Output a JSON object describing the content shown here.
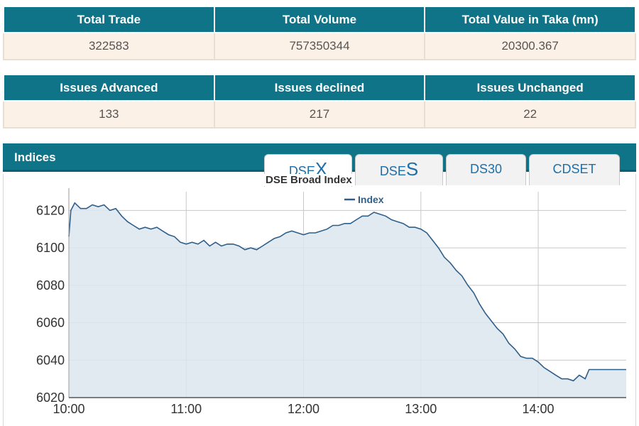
{
  "trade_table": {
    "headers": [
      "Total Trade",
      "Total Volume",
      "Total Value in Taka (mn)"
    ],
    "values": [
      "322583",
      "757350344",
      "20300.367"
    ]
  },
  "issues_table": {
    "headers": [
      "Issues Advanced",
      "Issues declined",
      "Issues Unchanged"
    ],
    "values": [
      "133",
      "217",
      "22"
    ]
  },
  "indices": {
    "title": "Indices",
    "tabs": [
      {
        "prefix": "DSE",
        "suffix": "X",
        "active": true
      },
      {
        "prefix": "DSE",
        "suffix": "S",
        "active": false
      },
      {
        "label": "DS30",
        "active": false
      },
      {
        "label": "CDSET",
        "active": false
      }
    ]
  },
  "colors": {
    "header_bg": "#0f7488",
    "cell_bg": "#fcf1e6",
    "line": "#2e5f8a",
    "fill": "#dde6ef",
    "tab_text": "#1e6fa8"
  },
  "chart_data": {
    "type": "area",
    "title": "DSE Broad Index",
    "legend": [
      "Index"
    ],
    "legend_position": "top-center",
    "x_tick_labels": [
      "10:00",
      "11:00",
      "12:00",
      "13:00",
      "14:00"
    ],
    "xlim": [
      "10:00",
      "14:45"
    ],
    "ylim": [
      6020,
      6130
    ],
    "y_ticks": [
      6020,
      6040,
      6060,
      6080,
      6100,
      6120
    ],
    "grid": true,
    "series": [
      {
        "name": "Index",
        "points": [
          [
            "10:00",
            6106
          ],
          [
            "10:01",
            6120
          ],
          [
            "10:03",
            6124
          ],
          [
            "10:06",
            6121
          ],
          [
            "10:09",
            6121
          ],
          [
            "10:12",
            6123
          ],
          [
            "10:15",
            6122
          ],
          [
            "10:18",
            6123
          ],
          [
            "10:21",
            6120
          ],
          [
            "10:24",
            6121
          ],
          [
            "10:27",
            6117
          ],
          [
            "10:30",
            6114
          ],
          [
            "10:33",
            6112
          ],
          [
            "10:36",
            6110
          ],
          [
            "10:39",
            6111
          ],
          [
            "10:42",
            6110
          ],
          [
            "10:45",
            6111
          ],
          [
            "10:48",
            6109
          ],
          [
            "10:51",
            6107
          ],
          [
            "10:54",
            6106
          ],
          [
            "10:57",
            6103
          ],
          [
            "11:00",
            6102
          ],
          [
            "11:03",
            6103
          ],
          [
            "11:06",
            6102
          ],
          [
            "11:09",
            6104
          ],
          [
            "11:12",
            6101
          ],
          [
            "11:15",
            6103
          ],
          [
            "11:18",
            6101
          ],
          [
            "11:21",
            6102
          ],
          [
            "11:24",
            6102
          ],
          [
            "11:27",
            6101
          ],
          [
            "11:30",
            6099
          ],
          [
            "11:33",
            6100
          ],
          [
            "11:36",
            6099
          ],
          [
            "11:39",
            6101
          ],
          [
            "11:42",
            6103
          ],
          [
            "11:45",
            6105
          ],
          [
            "11:48",
            6106
          ],
          [
            "11:51",
            6108
          ],
          [
            "11:54",
            6109
          ],
          [
            "11:57",
            6108
          ],
          [
            "12:00",
            6107
          ],
          [
            "12:03",
            6108
          ],
          [
            "12:06",
            6108
          ],
          [
            "12:09",
            6109
          ],
          [
            "12:12",
            6110
          ],
          [
            "12:15",
            6112
          ],
          [
            "12:18",
            6112
          ],
          [
            "12:21",
            6113
          ],
          [
            "12:24",
            6113
          ],
          [
            "12:27",
            6115
          ],
          [
            "12:30",
            6117
          ],
          [
            "12:33",
            6117
          ],
          [
            "12:36",
            6119
          ],
          [
            "12:39",
            6118
          ],
          [
            "12:42",
            6117
          ],
          [
            "12:45",
            6115
          ],
          [
            "12:48",
            6114
          ],
          [
            "12:51",
            6113
          ],
          [
            "12:54",
            6111
          ],
          [
            "12:57",
            6111
          ],
          [
            "13:00",
            6110
          ],
          [
            "13:03",
            6108
          ],
          [
            "13:06",
            6104
          ],
          [
            "13:09",
            6100
          ],
          [
            "13:12",
            6095
          ],
          [
            "13:15",
            6092
          ],
          [
            "13:18",
            6088
          ],
          [
            "13:21",
            6085
          ],
          [
            "13:24",
            6080
          ],
          [
            "13:27",
            6076
          ],
          [
            "13:30",
            6070
          ],
          [
            "13:33",
            6065
          ],
          [
            "13:36",
            6061
          ],
          [
            "13:39",
            6057
          ],
          [
            "13:42",
            6054
          ],
          [
            "13:45",
            6049
          ],
          [
            "13:48",
            6046
          ],
          [
            "13:51",
            6042
          ],
          [
            "13:54",
            6041
          ],
          [
            "13:57",
            6041
          ],
          [
            "14:00",
            6039
          ],
          [
            "14:03",
            6036
          ],
          [
            "14:06",
            6034
          ],
          [
            "14:09",
            6032
          ],
          [
            "14:12",
            6030
          ],
          [
            "14:15",
            6030
          ],
          [
            "14:18",
            6029
          ],
          [
            "14:21",
            6032
          ],
          [
            "14:24",
            6030
          ],
          [
            "14:26",
            6035
          ],
          [
            "14:30",
            6035
          ],
          [
            "14:45",
            6035
          ]
        ]
      }
    ]
  }
}
